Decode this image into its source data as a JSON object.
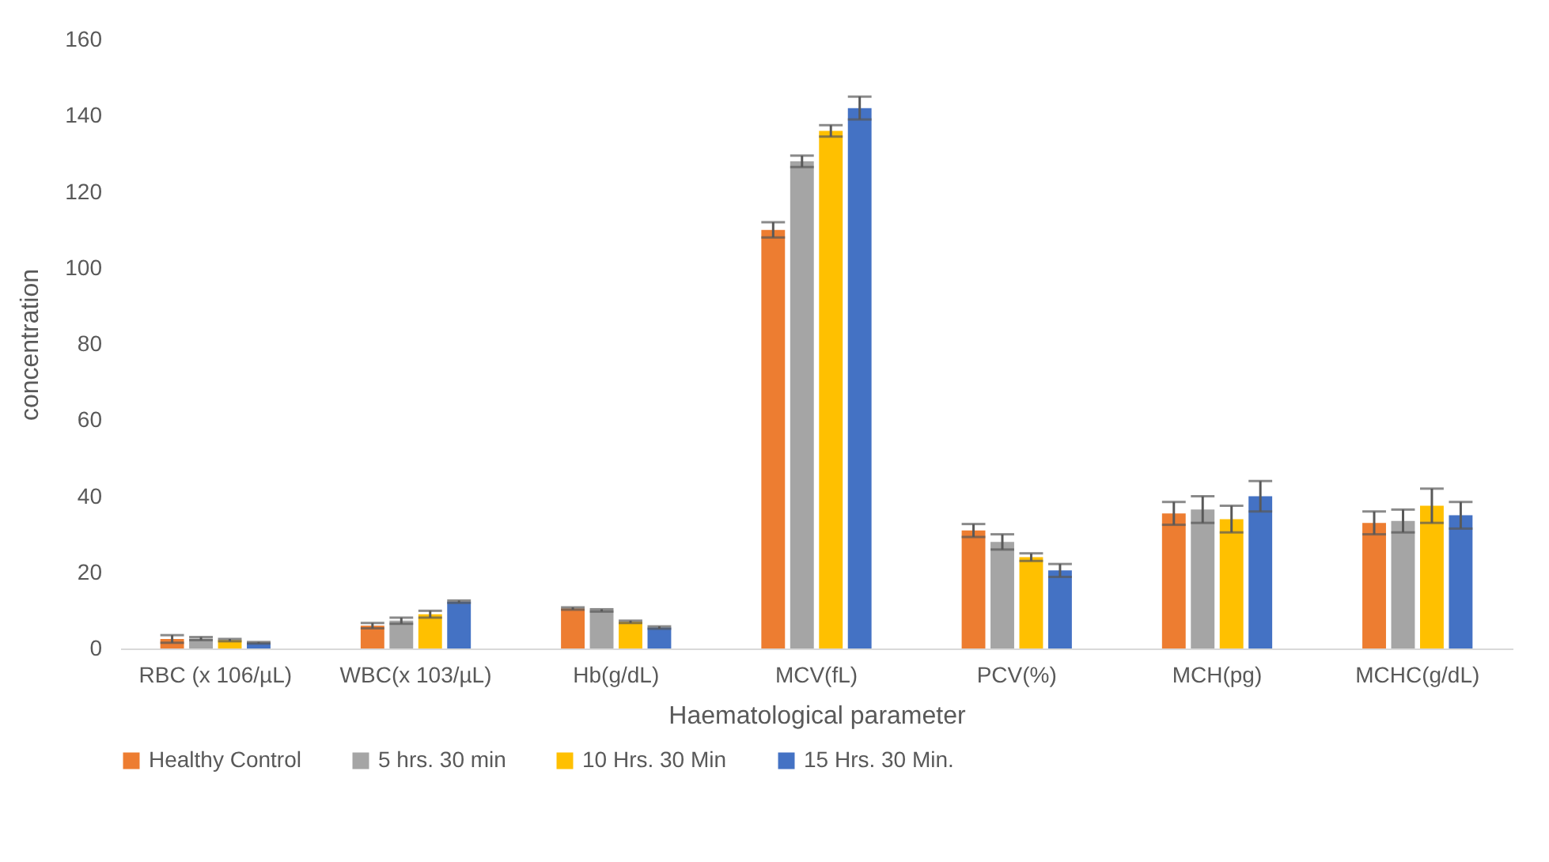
{
  "chart_data": {
    "type": "bar",
    "xlabel": "Haematological parameter",
    "ylabel": "concentration",
    "categories": [
      "RBC (x 106/µL)",
      "WBC(x 103/µL)",
      "Hb(g/dL)",
      "MCV(fL)",
      "PCV(%)",
      "MCH(pg)",
      "MCHC(g/dL)"
    ],
    "series": [
      {
        "name": "Healthy Control",
        "color": "#ed7d31",
        "values": [
          2.5,
          6,
          10.5,
          110,
          31,
          35.5,
          33
        ],
        "errors": [
          1,
          0.7,
          0.3,
          2,
          1.7,
          3,
          3
        ]
      },
      {
        "name": "5 hrs. 30 min",
        "color": "#a5a5a5",
        "values": [
          2.6,
          7.3,
          10,
          128,
          28,
          36.5,
          33.5
        ],
        "errors": [
          0.4,
          0.8,
          0.3,
          1.5,
          2,
          3.5,
          3
        ]
      },
      {
        "name": "10 Hrs. 30 Min",
        "color": "#ffc000",
        "values": [
          2.2,
          9,
          7,
          136,
          24,
          34,
          37.5
        ],
        "errors": [
          0.3,
          0.9,
          0.3,
          1.5,
          1,
          3.5,
          4.5
        ]
      },
      {
        "name": "15 Hrs. 30 Min.",
        "color": "#4472c4",
        "values": [
          1.5,
          12.3,
          5.5,
          142,
          20.5,
          40,
          35
        ],
        "errors": [
          0.2,
          0.3,
          0.3,
          3,
          1.7,
          4,
          3.5
        ]
      }
    ],
    "ylim": [
      0,
      160
    ],
    "yticks": [
      0,
      20,
      40,
      60,
      80,
      100,
      120,
      140,
      160
    ],
    "grid": false,
    "legend": "bottom"
  }
}
